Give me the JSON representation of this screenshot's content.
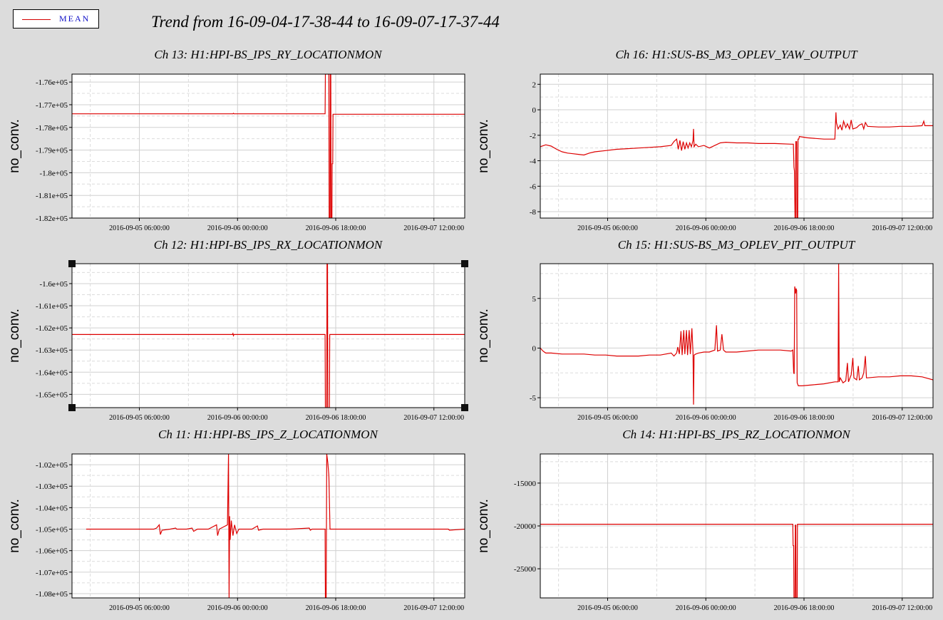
{
  "legend": {
    "label": "MEAN",
    "line_color": "#d40000",
    "text_color": "#1010c8"
  },
  "title": "Trend from 16-09-04-17-38-44 to 16-09-07-17-37-44",
  "series_color": "#dd0000",
  "x_ticks": [
    "2016-09-05 06:00:00",
    "2016-09-06 00:00:00",
    "2016-09-06 18:00:00",
    "2016-09-07 12:00:00"
  ],
  "x_tick_hours": [
    12.35,
    30.35,
    48.35,
    66.35
  ],
  "x_range_hours": [
    0,
    72
  ],
  "chart_data": [
    {
      "type": "line",
      "id": "ch13",
      "title": "Ch 13: H1:HPI-BS_IPS_RY_LOCATIONMON",
      "ylabel": "no_conv.",
      "y_ticks": [
        -176000,
        -177000,
        -178000,
        -179000,
        -180000,
        -181000,
        -182000
      ],
      "y_tick_labels": [
        "-1.76e+05",
        "-1.77e+05",
        "-1.78e+05",
        "-1.79e+05",
        "-1.8e+05",
        "-1.81e+05",
        "-1.82e+05"
      ],
      "ylim": [
        -182000,
        -175650
      ],
      "points": [
        [
          0,
          -177400
        ],
        [
          29.5,
          -177400
        ],
        [
          29.6,
          -177380
        ],
        [
          29.7,
          -177400
        ],
        [
          46.4,
          -177400
        ],
        [
          46.45,
          -175650
        ],
        [
          47.1,
          -175650
        ],
        [
          47.15,
          -182000
        ],
        [
          47.3,
          -182000
        ],
        [
          47.35,
          -175650
        ],
        [
          47.45,
          -175650
        ],
        [
          47.5,
          -182000
        ],
        [
          47.65,
          -182000
        ],
        [
          47.7,
          -179600
        ],
        [
          47.8,
          -179600
        ],
        [
          47.85,
          -177420
        ],
        [
          48.0,
          -177420
        ],
        [
          72,
          -177420
        ]
      ]
    },
    {
      "type": "line",
      "id": "ch16",
      "title": "Ch 16: H1:SUS-BS_M3_OPLEV_YAW_OUTPUT",
      "ylabel": "no_conv.",
      "y_ticks": [
        2,
        0,
        -2,
        -4,
        -6,
        -8
      ],
      "y_tick_labels": [
        "2",
        "0",
        "-2",
        "-4",
        "-6",
        "-8"
      ],
      "ylim": [
        -8.5,
        2.8
      ],
      "points": [
        [
          0,
          -2.9
        ],
        [
          1,
          -2.75
        ],
        [
          2,
          -2.85
        ],
        [
          3,
          -3.1
        ],
        [
          4,
          -3.3
        ],
        [
          5,
          -3.4
        ],
        [
          6,
          -3.45
        ],
        [
          7,
          -3.5
        ],
        [
          8,
          -3.55
        ],
        [
          9,
          -3.4
        ],
        [
          10,
          -3.3
        ],
        [
          12,
          -3.2
        ],
        [
          14,
          -3.1
        ],
        [
          16,
          -3.05
        ],
        [
          18,
          -3.0
        ],
        [
          20,
          -2.95
        ],
        [
          22,
          -2.9
        ],
        [
          24,
          -2.8
        ],
        [
          24.5,
          -2.5
        ],
        [
          25,
          -2.3
        ],
        [
          25.3,
          -3.1
        ],
        [
          25.6,
          -2.4
        ],
        [
          25.9,
          -3.2
        ],
        [
          26.2,
          -2.5
        ],
        [
          26.5,
          -3.1
        ],
        [
          26.8,
          -2.6
        ],
        [
          27.1,
          -3.0
        ],
        [
          27.4,
          -2.6
        ],
        [
          27.7,
          -2.9
        ],
        [
          28.0,
          -2.4
        ],
        [
          28.1,
          -1.5
        ],
        [
          28.2,
          -2.9
        ],
        [
          28.5,
          -2.7
        ],
        [
          29,
          -2.9
        ],
        [
          30,
          -2.8
        ],
        [
          31,
          -3.0
        ],
        [
          32,
          -2.8
        ],
        [
          33,
          -2.6
        ],
        [
          34,
          -2.55
        ],
        [
          36,
          -2.6
        ],
        [
          38,
          -2.6
        ],
        [
          40,
          -2.65
        ],
        [
          43,
          -2.65
        ],
        [
          46,
          -2.7
        ],
        [
          46.4,
          -2.7
        ],
        [
          46.5,
          -4.5
        ],
        [
          46.6,
          -4.8
        ],
        [
          46.7,
          -8.5
        ],
        [
          46.8,
          -8.5
        ],
        [
          46.85,
          -2.5
        ],
        [
          47.0,
          -2.5
        ],
        [
          47.05,
          -8.5
        ],
        [
          47.2,
          -8.5
        ],
        [
          47.25,
          -2.3
        ],
        [
          47.4,
          -2.3
        ],
        [
          47.5,
          -2.1
        ],
        [
          49,
          -2.2
        ],
        [
          52,
          -2.3
        ],
        [
          54,
          -2.3
        ],
        [
          54.1,
          -1.3
        ],
        [
          54.2,
          -0.2
        ],
        [
          54.3,
          -1.0
        ],
        [
          54.6,
          -1.5
        ],
        [
          55,
          -1.2
        ],
        [
          55.3,
          -1.6
        ],
        [
          55.6,
          -0.9
        ],
        [
          56,
          -1.4
        ],
        [
          56.3,
          -1.1
        ],
        [
          56.7,
          -1.5
        ],
        [
          57,
          -0.8
        ],
        [
          57.3,
          -1.5
        ],
        [
          58,
          -1.4
        ],
        [
          58.5,
          -1.2
        ],
        [
          59,
          -1.1
        ],
        [
          59.3,
          -1.5
        ],
        [
          59.6,
          -1.0
        ],
        [
          60,
          -1.3
        ],
        [
          62,
          -1.35
        ],
        [
          64,
          -1.35
        ],
        [
          66,
          -1.3
        ],
        [
          68,
          -1.3
        ],
        [
          70,
          -1.25
        ],
        [
          70.3,
          -0.9
        ],
        [
          70.5,
          -1.25
        ],
        [
          72,
          -1.25
        ]
      ]
    },
    {
      "type": "line",
      "id": "ch12",
      "title": "Ch 12: H1:HPI-BS_IPS_RX_LOCATIONMON",
      "ylabel": "no_conv.",
      "y_ticks": [
        -160000,
        -161000,
        -162000,
        -163000,
        -164000,
        -165000
      ],
      "y_tick_labels": [
        "-1.6e+05",
        "-1.61e+05",
        "-1.62e+05",
        "-1.63e+05",
        "-1.64e+05",
        "-1.65e+05"
      ],
      "ylim": [
        -165600,
        -159100
      ],
      "points": [
        [
          0,
          -162300
        ],
        [
          29.4,
          -162300
        ],
        [
          29.5,
          -162250
        ],
        [
          29.6,
          -162350
        ],
        [
          29.7,
          -162300
        ],
        [
          46.4,
          -162300
        ],
        [
          46.45,
          -165600
        ],
        [
          46.7,
          -165600
        ],
        [
          46.75,
          -159100
        ],
        [
          46.85,
          -159100
        ],
        [
          46.9,
          -165600
        ],
        [
          47.2,
          -165600
        ],
        [
          47.25,
          -162300
        ],
        [
          72,
          -162300
        ]
      ]
    },
    {
      "type": "line",
      "id": "ch15",
      "title": "Ch 15: H1:SUS-BS_M3_OPLEV_PIT_OUTPUT",
      "ylabel": "no_conv.",
      "y_ticks": [
        5,
        0,
        -5
      ],
      "y_tick_labels": [
        "5",
        "0",
        "-5"
      ],
      "ylim": [
        -6,
        8.5
      ],
      "points": [
        [
          0,
          0
        ],
        [
          0.5,
          -0.3
        ],
        [
          1,
          -0.5
        ],
        [
          2,
          -0.5
        ],
        [
          4,
          -0.6
        ],
        [
          6,
          -0.6
        ],
        [
          8,
          -0.6
        ],
        [
          10,
          -0.7
        ],
        [
          12,
          -0.7
        ],
        [
          14,
          -0.8
        ],
        [
          16,
          -0.8
        ],
        [
          18,
          -0.8
        ],
        [
          20,
          -0.7
        ],
        [
          22,
          -0.7
        ],
        [
          24,
          -0.5
        ],
        [
          24.5,
          -0.8
        ],
        [
          25,
          -0.5
        ],
        [
          25.2,
          0.1
        ],
        [
          25.5,
          -0.6
        ],
        [
          25.8,
          1.7
        ],
        [
          26,
          -0.7
        ],
        [
          26.3,
          1.8
        ],
        [
          26.5,
          -0.6
        ],
        [
          26.8,
          1.8
        ],
        [
          27,
          -0.7
        ],
        [
          27.3,
          1.8
        ],
        [
          27.5,
          -0.6
        ],
        [
          27.8,
          2.0
        ],
        [
          28.0,
          -0.5
        ],
        [
          28.1,
          -5.7
        ],
        [
          28.2,
          -0.7
        ],
        [
          28.5,
          -0.6
        ],
        [
          29,
          -0.5
        ],
        [
          30,
          -0.4
        ],
        [
          31,
          -0.4
        ],
        [
          32,
          -0.2
        ],
        [
          32.3,
          2.3
        ],
        [
          32.5,
          -0.3
        ],
        [
          33,
          -0.2
        ],
        [
          33.3,
          1.4
        ],
        [
          33.6,
          -0.2
        ],
        [
          34,
          -0.4
        ],
        [
          36,
          -0.4
        ],
        [
          40,
          -0.2
        ],
        [
          44,
          -0.2
        ],
        [
          46,
          -0.3
        ],
        [
          46.3,
          -0.2
        ],
        [
          46.45,
          -2.5
        ],
        [
          46.55,
          -2.6
        ],
        [
          46.65,
          6.2
        ],
        [
          46.8,
          5.5
        ],
        [
          46.9,
          6.0
        ],
        [
          47.0,
          5.8
        ],
        [
          47.1,
          -3.5
        ],
        [
          47.3,
          -3.8
        ],
        [
          48,
          -3.8
        ],
        [
          50,
          -3.7
        ],
        [
          52,
          -3.6
        ],
        [
          54,
          -3.4
        ],
        [
          54.6,
          -3.4
        ],
        [
          54.7,
          8.5
        ],
        [
          54.8,
          -3.4
        ],
        [
          55,
          -3.0
        ],
        [
          55.5,
          -3.5
        ],
        [
          56,
          -3.3
        ],
        [
          56.3,
          -1.5
        ],
        [
          56.5,
          -3.4
        ],
        [
          57,
          -2.7
        ],
        [
          57.3,
          -1.0
        ],
        [
          57.5,
          -3.0
        ],
        [
          58,
          -3.2
        ],
        [
          58.3,
          -1.8
        ],
        [
          58.5,
          -3.2
        ],
        [
          59,
          -3.0
        ],
        [
          59.3,
          -2.5
        ],
        [
          59.6,
          -0.8
        ],
        [
          59.8,
          -3.0
        ],
        [
          60,
          -3.0
        ],
        [
          62,
          -2.9
        ],
        [
          64,
          -2.9
        ],
        [
          66,
          -2.8
        ],
        [
          68,
          -2.8
        ],
        [
          70,
          -2.9
        ],
        [
          72,
          -3.2
        ]
      ]
    },
    {
      "type": "line",
      "id": "ch11",
      "title": "Ch 11: H1:HPI-BS_IPS_Z_LOCATIONMON",
      "ylabel": "no_conv.",
      "y_ticks": [
        -102000,
        -103000,
        -104000,
        -105000,
        -106000,
        -107000,
        -108000
      ],
      "y_tick_labels": [
        "-1.02e+05",
        "-1.03e+05",
        "-1.04e+05",
        "-1.05e+05",
        "-1.06e+05",
        "-1.07e+05",
        "-1.08e+05"
      ],
      "ylim": [
        -108200,
        -101500
      ],
      "points": [
        [
          2.6,
          -105000
        ],
        [
          15,
          -105000
        ],
        [
          15.5,
          -104950
        ],
        [
          16,
          -104800
        ],
        [
          16.2,
          -105250
        ],
        [
          16.5,
          -105050
        ],
        [
          18,
          -105000
        ],
        [
          19,
          -104950
        ],
        [
          19.2,
          -105000
        ],
        [
          21,
          -105000
        ],
        [
          22,
          -104950
        ],
        [
          22.3,
          -105100
        ],
        [
          23,
          -105000
        ],
        [
          25,
          -105000
        ],
        [
          26.5,
          -104800
        ],
        [
          26.7,
          -105300
        ],
        [
          27,
          -105000
        ],
        [
          28.5,
          -104800
        ],
        [
          28.7,
          -101500
        ],
        [
          28.8,
          -108200
        ],
        [
          28.9,
          -104400
        ],
        [
          29,
          -105500
        ],
        [
          29.2,
          -104600
        ],
        [
          29.5,
          -105300
        ],
        [
          29.8,
          -104800
        ],
        [
          30.2,
          -105200
        ],
        [
          30.6,
          -105000
        ],
        [
          33,
          -105000
        ],
        [
          34,
          -104850
        ],
        [
          34.2,
          -105050
        ],
        [
          35,
          -105000
        ],
        [
          40,
          -105000
        ],
        [
          43.5,
          -104950
        ],
        [
          43.7,
          -105050
        ],
        [
          44,
          -105000
        ],
        [
          46.4,
          -105000
        ],
        [
          46.45,
          -108200
        ],
        [
          46.6,
          -108200
        ],
        [
          46.7,
          -101500
        ],
        [
          46.9,
          -101900
        ],
        [
          47.1,
          -102500
        ],
        [
          47.3,
          -105000
        ],
        [
          47.4,
          -105000
        ],
        [
          60,
          -105000
        ],
        [
          66,
          -105000
        ],
        [
          69,
          -105000
        ],
        [
          69.2,
          -105050
        ],
        [
          72,
          -105000
        ]
      ]
    },
    {
      "type": "line",
      "id": "ch14",
      "title": "Ch 14: H1:HPI-BS_IPS_RZ_LOCATIONMON",
      "ylabel": "no_conv.",
      "y_ticks": [
        -15000,
        -20000,
        -25000
      ],
      "y_tick_labels": [
        "-15000",
        "-20000",
        "-25000"
      ],
      "ylim": [
        -28400,
        -11600
      ],
      "points": [
        [
          0,
          -19800
        ],
        [
          46.3,
          -19800
        ],
        [
          46.35,
          -22300
        ],
        [
          46.45,
          -22300
        ],
        [
          46.5,
          -28400
        ],
        [
          46.7,
          -28400
        ],
        [
          46.75,
          -19900
        ],
        [
          46.85,
          -19900
        ],
        [
          46.9,
          -28400
        ],
        [
          47.1,
          -28400
        ],
        [
          47.15,
          -19800
        ],
        [
          72,
          -19800
        ]
      ]
    }
  ]
}
